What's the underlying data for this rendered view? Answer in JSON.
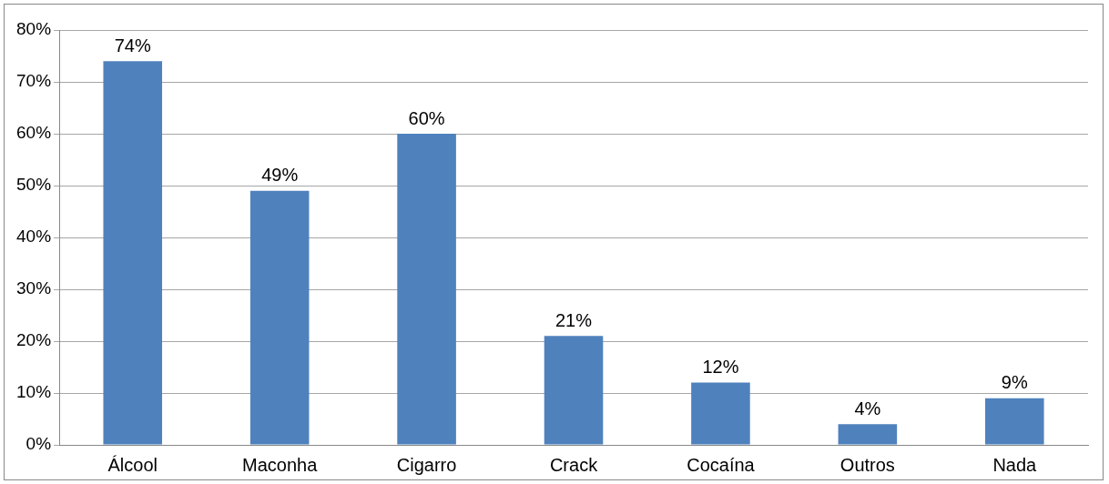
{
  "chart_data": {
    "type": "bar",
    "categories": [
      "Álcool",
      "Maconha",
      "Cigarro",
      "Crack",
      "Cocaína",
      "Outros",
      "Nada"
    ],
    "values": [
      74,
      49,
      60,
      21,
      12,
      4,
      9
    ],
    "color": "#4f81bd",
    "ylim": [
      0,
      80
    ],
    "yticks": [
      {
        "value": 0,
        "label": "0%"
      },
      {
        "value": 10,
        "label": "10%"
      },
      {
        "value": 20,
        "label": "20%"
      },
      {
        "value": 30,
        "label": "30%"
      },
      {
        "value": 40,
        "label": "40%"
      },
      {
        "value": 50,
        "label": "50%"
      },
      {
        "value": 60,
        "label": "60%"
      },
      {
        "value": 70,
        "label": "70%"
      },
      {
        "value": 80,
        "label": "80%"
      }
    ],
    "value_labels": [
      "74%",
      "49%",
      "60%",
      "21%",
      "12%",
      "4%",
      "9%"
    ],
    "grid": "y",
    "legend": false
  }
}
